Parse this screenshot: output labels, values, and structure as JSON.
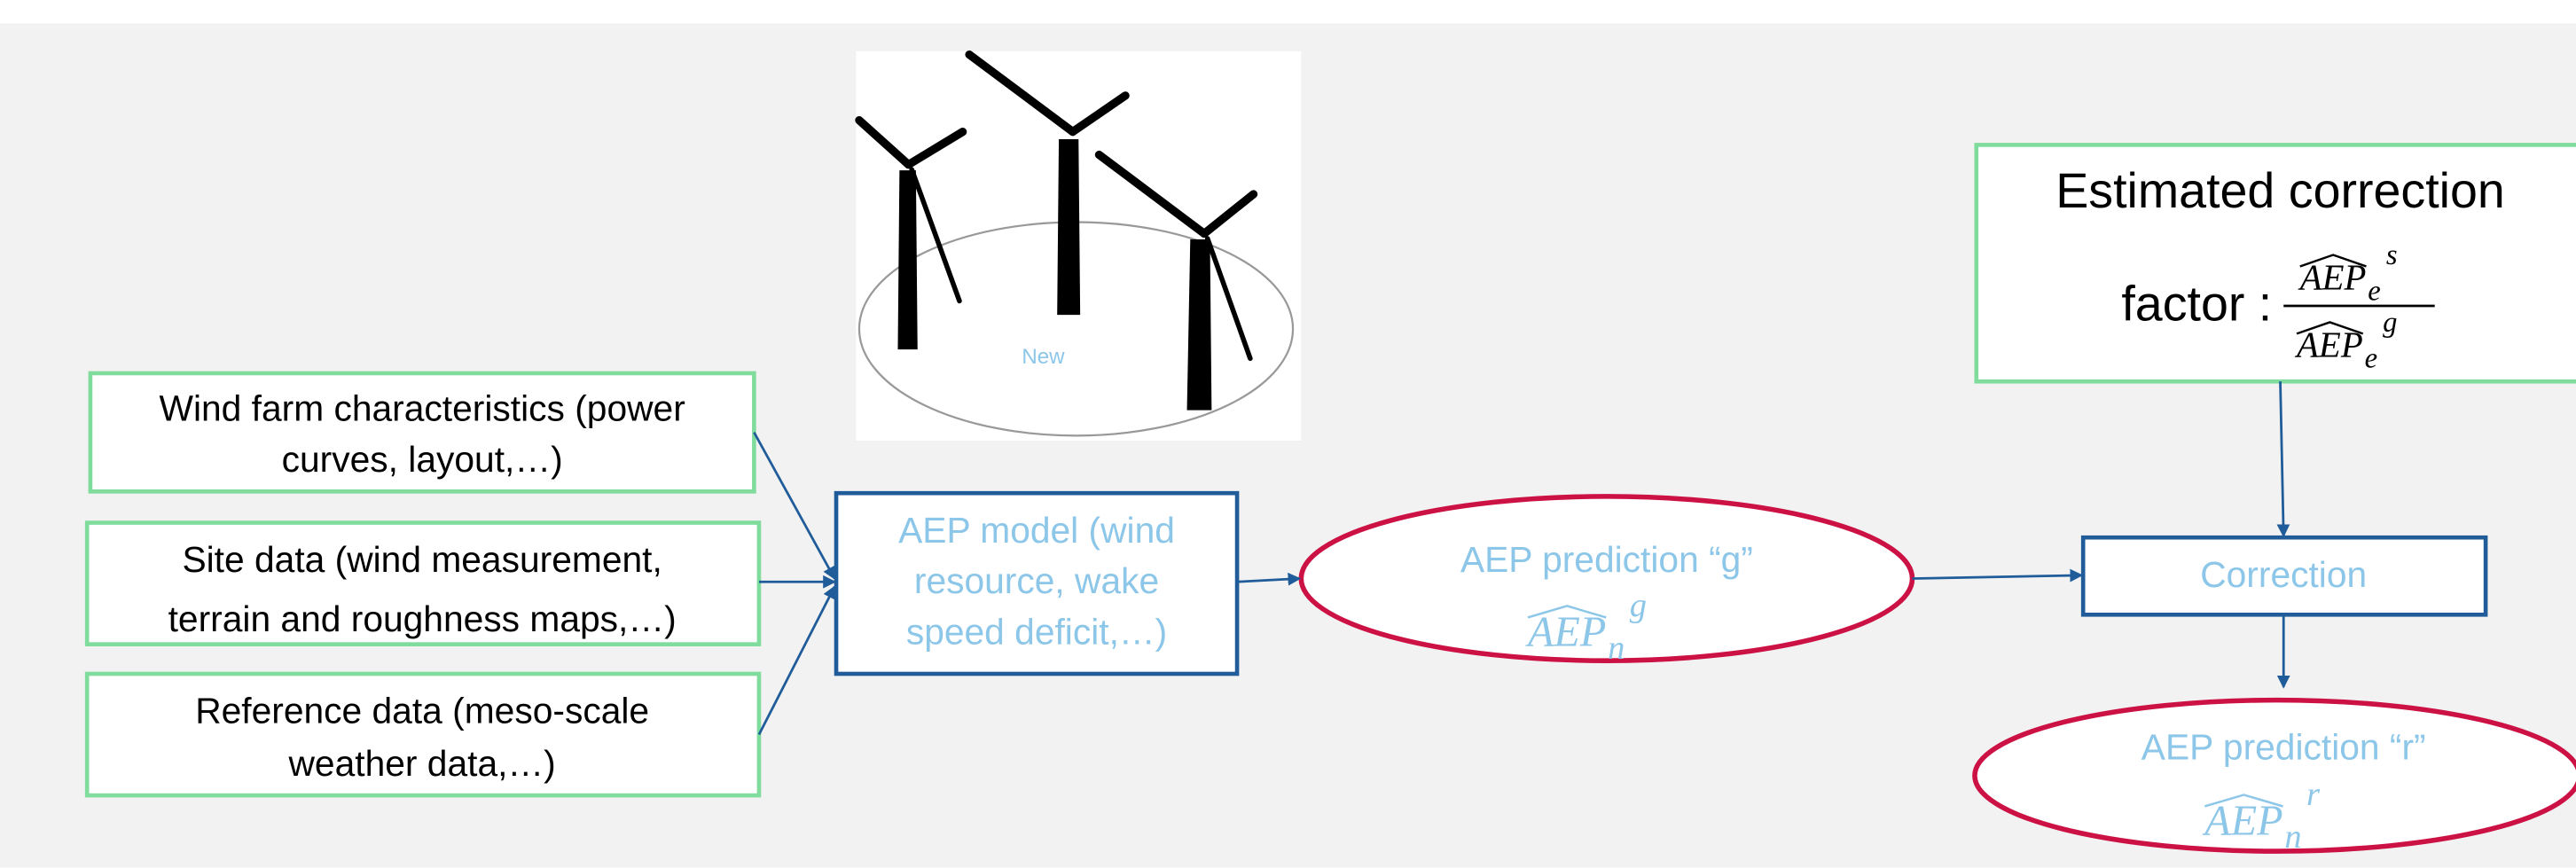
{
  "image": {
    "label": "New"
  },
  "inputs": [
    {
      "lines": [
        "Wind farm characteristics (power",
        "curves, layout,…)"
      ]
    },
    {
      "lines": [
        "Site data (wind measurement,",
        "terrain and roughness maps,…)"
      ]
    },
    {
      "lines": [
        "Reference data (meso-scale",
        "weather data,…)"
      ]
    }
  ],
  "model": {
    "lines": [
      "AEP model (wind",
      "resource, wake",
      "speed deficit,…)"
    ]
  },
  "prediction_g": {
    "label": "AEP prediction “g”",
    "symbol": "AEP",
    "subscript": "n",
    "superscript": "g"
  },
  "correction_factor": {
    "title": "Estimated correction",
    "prefix": "factor :",
    "numerator": {
      "symbol": "AEP",
      "subscript": "e",
      "superscript": "s"
    },
    "denominator": {
      "symbol": "AEP",
      "subscript": "e",
      "superscript": "g"
    }
  },
  "correction": {
    "label": "Correction"
  },
  "prediction_r": {
    "label": "AEP prediction “r”",
    "symbol": "AEP",
    "subscript": "n",
    "superscript": "r"
  }
}
